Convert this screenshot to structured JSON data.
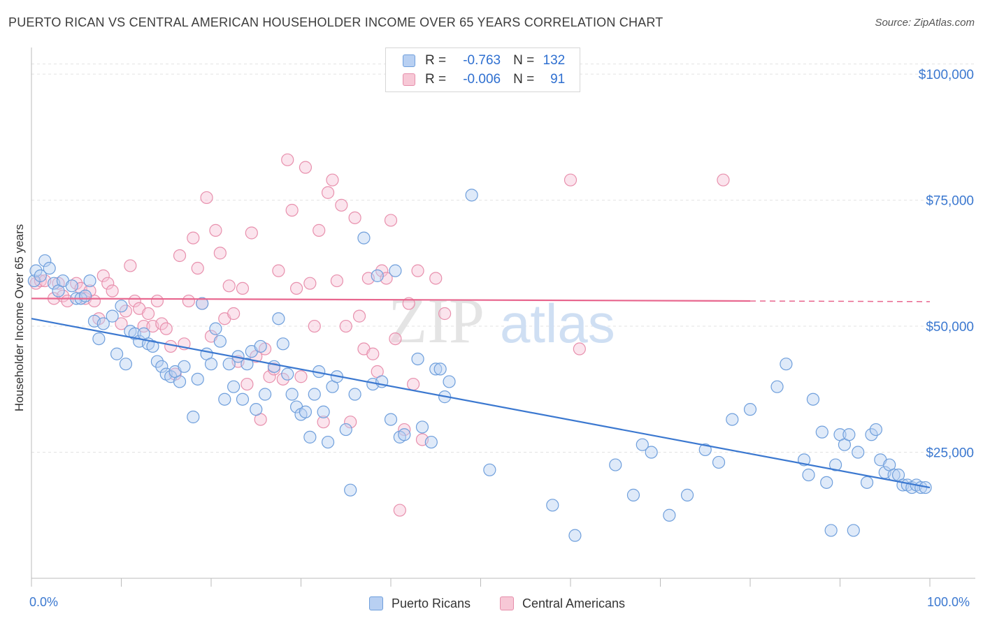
{
  "header": {
    "title": "PUERTO RICAN VS CENTRAL AMERICAN HOUSEHOLDER INCOME OVER 65 YEARS CORRELATION CHART",
    "source": "Source: ZipAtlas.com"
  },
  "legend": {
    "r_label": "R =",
    "n_label": "N =",
    "rows": [
      {
        "r": "-0.763",
        "n": "132",
        "color": "#6f9fdc"
      },
      {
        "r": "-0.006",
        "n": "91",
        "color": "#e68fab"
      }
    ]
  },
  "watermark": {
    "zip": "ZIP",
    "atlas": "atlas"
  },
  "chart_data": {
    "type": "scatter",
    "xlabel": "",
    "ylabel": "Householder Income Over 65 years",
    "xlim": [
      0,
      100
    ],
    "ylim": [
      0,
      105000
    ],
    "x_tick_labels": [
      "0.0%",
      "100.0%"
    ],
    "y_ticks": [
      25000,
      50000,
      75000,
      100000
    ],
    "y_tick_labels": [
      "$25,000",
      "$50,000",
      "$75,000",
      "$100,000"
    ],
    "grid": "horizontal dashed",
    "colors": {
      "puerto_ricans": "#3b78d0",
      "central_americans": "#e8668e"
    },
    "series": [
      {
        "name": "Puerto Ricans",
        "color": "#6f9fdc",
        "trend": {
          "x": [
            0,
            100
          ],
          "y": [
            51500,
            18000
          ]
        },
        "points": [
          [
            0.3,
            59000
          ],
          [
            0.5,
            61000
          ],
          [
            1,
            60000
          ],
          [
            1.5,
            63000
          ],
          [
            2,
            61500
          ],
          [
            2.5,
            58500
          ],
          [
            3,
            57000
          ],
          [
            3.5,
            59000
          ],
          [
            4.5,
            58000
          ],
          [
            5,
            55500
          ],
          [
            5.5,
            55500
          ],
          [
            6,
            56000
          ],
          [
            6.5,
            59000
          ],
          [
            7,
            51000
          ],
          [
            7.5,
            47500
          ],
          [
            8,
            50500
          ],
          [
            9,
            52000
          ],
          [
            9.5,
            44500
          ],
          [
            10,
            54000
          ],
          [
            10.5,
            42500
          ],
          [
            11,
            49000
          ],
          [
            11.5,
            48500
          ],
          [
            12,
            47000
          ],
          [
            12.5,
            48500
          ],
          [
            13,
            46500
          ],
          [
            13.5,
            46000
          ],
          [
            14,
            43000
          ],
          [
            14.5,
            42000
          ],
          [
            15,
            40500
          ],
          [
            15.5,
            40000
          ],
          [
            16,
            41000
          ],
          [
            16.5,
            39000
          ],
          [
            17,
            42000
          ],
          [
            18,
            32000
          ],
          [
            18.5,
            39500
          ],
          [
            19,
            54500
          ],
          [
            19.5,
            44500
          ],
          [
            20,
            42500
          ],
          [
            20.5,
            49500
          ],
          [
            21,
            47000
          ],
          [
            21.5,
            35500
          ],
          [
            22,
            42500
          ],
          [
            22.5,
            38000
          ],
          [
            23,
            44000
          ],
          [
            23.5,
            35500
          ],
          [
            24,
            42500
          ],
          [
            24.5,
            45000
          ],
          [
            25,
            33500
          ],
          [
            25.5,
            46000
          ],
          [
            26,
            36500
          ],
          [
            27,
            42000
          ],
          [
            27.5,
            51500
          ],
          [
            28,
            46500
          ],
          [
            28.5,
            40500
          ],
          [
            29,
            36500
          ],
          [
            29.5,
            34000
          ],
          [
            30,
            32500
          ],
          [
            30.5,
            33000
          ],
          [
            31,
            28000
          ],
          [
            31.5,
            36500
          ],
          [
            32,
            41000
          ],
          [
            32.5,
            33000
          ],
          [
            33,
            27000
          ],
          [
            33.5,
            38000
          ],
          [
            34,
            40000
          ],
          [
            35,
            29500
          ],
          [
            35.5,
            17500
          ],
          [
            36,
            36500
          ],
          [
            37,
            67500
          ],
          [
            38,
            38500
          ],
          [
            38.5,
            60000
          ],
          [
            39,
            39000
          ],
          [
            40,
            31500
          ],
          [
            40.5,
            61000
          ],
          [
            41,
            28000
          ],
          [
            41.5,
            28500
          ],
          [
            43,
            43500
          ],
          [
            43.5,
            30000
          ],
          [
            44.5,
            27000
          ],
          [
            45,
            41500
          ],
          [
            45.5,
            41500
          ],
          [
            46,
            36000
          ],
          [
            46.5,
            39000
          ],
          [
            49,
            76000
          ],
          [
            51,
            21500
          ],
          [
            58,
            14500
          ],
          [
            60.5,
            8500
          ],
          [
            65,
            22500
          ],
          [
            67,
            16500
          ],
          [
            68,
            26500
          ],
          [
            69,
            25000
          ],
          [
            71,
            12500
          ],
          [
            73,
            16500
          ],
          [
            75,
            25500
          ],
          [
            76.5,
            23000
          ],
          [
            78,
            31500
          ],
          [
            80,
            33500
          ],
          [
            83,
            38000
          ],
          [
            84,
            42500
          ],
          [
            86,
            23500
          ],
          [
            86.5,
            20500
          ],
          [
            87,
            35500
          ],
          [
            88,
            29000
          ],
          [
            88.5,
            19000
          ],
          [
            89,
            9500
          ],
          [
            89.5,
            22500
          ],
          [
            90,
            28500
          ],
          [
            90.5,
            26500
          ],
          [
            91,
            28500
          ],
          [
            91.5,
            9500
          ],
          [
            92,
            25000
          ],
          [
            93,
            19000
          ],
          [
            93.5,
            28500
          ],
          [
            94,
            29500
          ],
          [
            94.5,
            23500
          ],
          [
            95,
            21000
          ],
          [
            95.5,
            22500
          ],
          [
            96,
            20500
          ],
          [
            96.5,
            20500
          ],
          [
            97,
            18500
          ],
          [
            97.5,
            18500
          ],
          [
            98,
            18000
          ],
          [
            98.5,
            18500
          ],
          [
            99,
            18000
          ],
          [
            99.5,
            18000
          ]
        ]
      },
      {
        "name": "Central Americans",
        "color": "#e68fab",
        "trend": {
          "x": [
            0,
            80
          ],
          "y": [
            55500,
            55000
          ]
        },
        "points": [
          [
            0.5,
            58500
          ],
          [
            1,
            59000
          ],
          [
            1.5,
            59000
          ],
          [
            2.5,
            55500
          ],
          [
            3,
            58500
          ],
          [
            3.5,
            56000
          ],
          [
            4,
            55000
          ],
          [
            5,
            58500
          ],
          [
            5.5,
            57500
          ],
          [
            6,
            55500
          ],
          [
            6.5,
            57000
          ],
          [
            7,
            55000
          ],
          [
            7.5,
            51500
          ],
          [
            8,
            60000
          ],
          [
            8.5,
            58500
          ],
          [
            9,
            57000
          ],
          [
            10,
            50500
          ],
          [
            10.5,
            53000
          ],
          [
            11,
            62000
          ],
          [
            11.5,
            55000
          ],
          [
            12,
            53500
          ],
          [
            12.5,
            50000
          ],
          [
            13,
            52500
          ],
          [
            13.5,
            50000
          ],
          [
            14,
            55000
          ],
          [
            14.5,
            50500
          ],
          [
            15,
            49500
          ],
          [
            15.5,
            46000
          ],
          [
            16,
            40500
          ],
          [
            16.5,
            64000
          ],
          [
            17,
            46500
          ],
          [
            17.5,
            55000
          ],
          [
            18,
            67500
          ],
          [
            18.5,
            61500
          ],
          [
            19,
            54500
          ],
          [
            19.5,
            75500
          ],
          [
            20,
            48000
          ],
          [
            20.5,
            69000
          ],
          [
            21,
            64500
          ],
          [
            21.5,
            51500
          ],
          [
            22,
            58000
          ],
          [
            22.5,
            52500
          ],
          [
            23,
            43000
          ],
          [
            23.5,
            57500
          ],
          [
            24,
            38500
          ],
          [
            24.5,
            68500
          ],
          [
            25,
            44000
          ],
          [
            25.5,
            31500
          ],
          [
            26,
            45500
          ],
          [
            26.5,
            40000
          ],
          [
            27,
            41500
          ],
          [
            27.5,
            61000
          ],
          [
            28,
            39500
          ],
          [
            28.5,
            83000
          ],
          [
            29,
            73000
          ],
          [
            29.5,
            57500
          ],
          [
            30,
            40000
          ],
          [
            30.5,
            81500
          ],
          [
            31,
            58500
          ],
          [
            31.5,
            50000
          ],
          [
            32,
            69000
          ],
          [
            32.5,
            31000
          ],
          [
            33,
            76500
          ],
          [
            33.5,
            79000
          ],
          [
            34,
            59000
          ],
          [
            34.5,
            74000
          ],
          [
            35,
            50000
          ],
          [
            35.5,
            31000
          ],
          [
            36,
            71500
          ],
          [
            36.5,
            52000
          ],
          [
            37,
            45500
          ],
          [
            37.5,
            59500
          ],
          [
            38,
            44500
          ],
          [
            38.5,
            41000
          ],
          [
            39,
            61000
          ],
          [
            39.5,
            59500
          ],
          [
            40,
            71000
          ],
          [
            40.5,
            47500
          ],
          [
            41,
            13500
          ],
          [
            41.5,
            29500
          ],
          [
            42,
            54500
          ],
          [
            42.5,
            38500
          ],
          [
            43,
            61000
          ],
          [
            43.5,
            27500
          ],
          [
            45,
            59500
          ],
          [
            46,
            52500
          ],
          [
            60,
            79000
          ],
          [
            61,
            45500
          ],
          [
            77,
            79000
          ]
        ]
      }
    ]
  },
  "bottom_legend": [
    {
      "label": "Puerto Ricans"
    },
    {
      "label": "Central Americans"
    }
  ]
}
